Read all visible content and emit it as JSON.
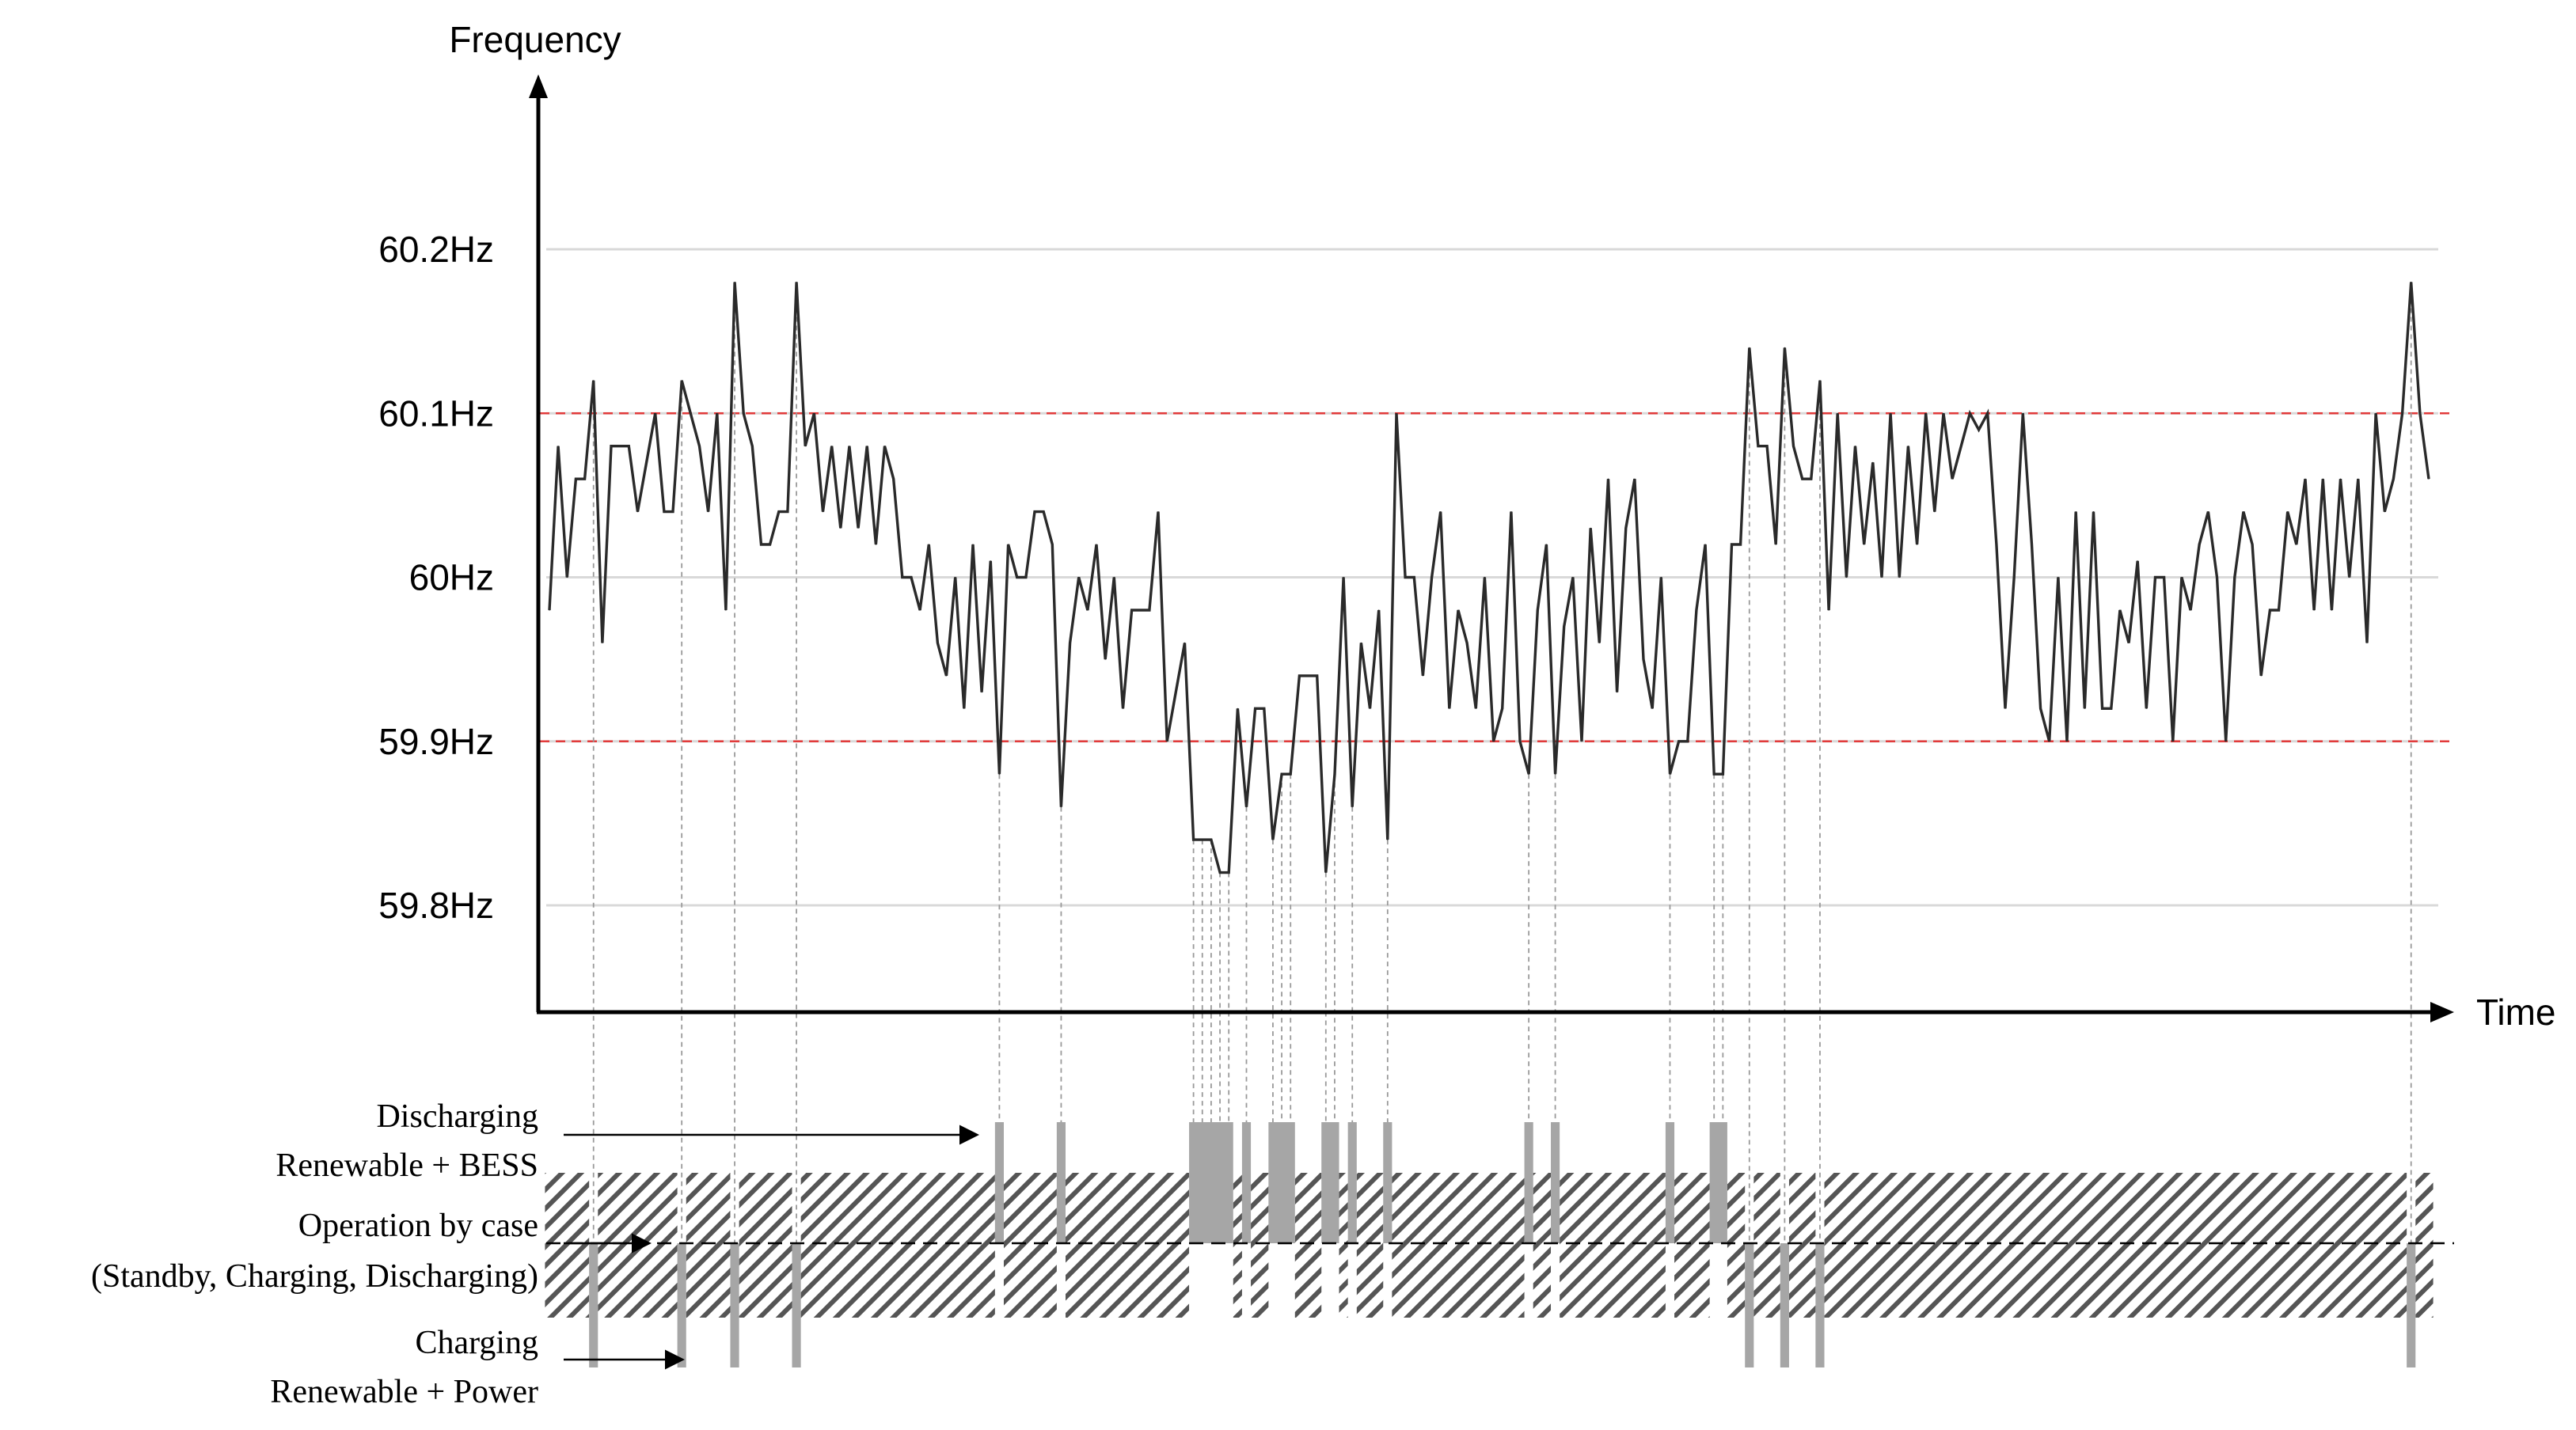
{
  "chart_data": {
    "type": "line",
    "ylabel": "Frequency",
    "xlabel": "Time",
    "y_ticks": [
      "60.2Hz",
      "60.1Hz",
      "60Hz",
      "59.9Hz",
      "59.8Hz"
    ],
    "y_tick_values": [
      60.2,
      60.1,
      60.0,
      59.9,
      59.8
    ],
    "ylim": [
      59.74,
      60.2
    ],
    "xlim": [
      0,
      231
    ],
    "thresholds": {
      "upper": 60.1,
      "lower": 59.9
    },
    "series": [
      {
        "values": [
          59.98,
          60.08,
          60.0,
          60.06,
          60.06,
          60.12,
          59.96,
          60.08,
          60.08,
          60.08,
          60.04,
          60.07,
          60.1,
          60.04,
          60.04,
          60.12,
          60.1,
          60.08,
          60.04,
          60.1,
          59.98,
          60.18,
          60.1,
          60.08,
          60.02,
          60.02,
          60.04,
          60.04,
          60.18,
          60.08,
          60.1,
          60.04,
          60.08,
          60.03,
          60.08,
          60.03,
          60.08,
          60.02,
          60.08,
          60.06,
          60.0,
          60.0,
          59.98,
          60.02,
          59.96,
          59.94,
          60.0,
          59.92,
          60.02,
          59.93,
          60.01,
          59.88,
          60.02,
          60.0,
          60.0,
          60.04,
          60.04,
          60.02,
          59.86,
          59.96,
          60.0,
          59.98,
          60.02,
          59.95,
          60.0,
          59.92,
          59.98,
          59.98,
          59.98,
          60.04,
          59.9,
          59.93,
          59.96,
          59.84,
          59.84,
          59.84,
          59.82,
          59.82,
          59.92,
          59.86,
          59.92,
          59.92,
          59.84,
          59.88,
          59.88,
          59.94,
          59.94,
          59.94,
          59.82,
          59.88,
          60.0,
          59.86,
          59.96,
          59.92,
          59.98,
          59.84,
          60.1,
          60.0,
          60.0,
          59.94,
          60.0,
          60.04,
          59.92,
          59.98,
          59.96,
          59.92,
          60.0,
          59.9,
          59.92,
          60.04,
          59.9,
          59.88,
          59.98,
          60.02,
          59.88,
          59.97,
          60.0,
          59.9,
          60.03,
          59.96,
          60.06,
          59.93,
          60.03,
          60.06,
          59.95,
          59.92,
          60.0,
          59.88,
          59.9,
          59.9,
          59.98,
          60.02,
          59.88,
          59.88,
          60.02,
          60.02,
          60.14,
          60.08,
          60.08,
          60.02,
          60.14,
          60.08,
          60.06,
          60.06,
          60.12,
          59.98,
          60.1,
          60.0,
          60.08,
          60.02,
          60.07,
          60.0,
          60.1,
          60.0,
          60.08,
          60.02,
          60.1,
          60.04,
          60.1,
          60.06,
          60.08,
          60.1,
          60.09,
          60.1,
          60.02,
          59.92,
          60.0,
          60.1,
          60.02,
          59.92,
          59.9,
          60.0,
          59.9,
          60.04,
          59.92,
          60.04,
          59.92,
          59.92,
          59.98,
          59.96,
          60.01,
          59.92,
          60.0,
          60.0,
          59.9,
          60.0,
          59.98,
          60.02,
          60.04,
          60.0,
          59.9,
          60.0,
          60.04,
          60.02,
          59.94,
          59.98,
          59.98,
          60.04,
          60.02,
          60.06,
          59.98,
          60.06,
          59.98,
          60.06,
          60.0,
          60.06,
          59.96,
          60.1,
          60.04,
          60.06,
          60.1,
          60.18,
          60.1,
          60.06
        ]
      }
    ],
    "operation_legend": {
      "discharging_title": "Discharging",
      "discharging_sub": "Renewable + BESS",
      "operation_title": "Operation by case",
      "operation_sub": "(Standby, Charging, Discharging)",
      "charging_title": "Charging",
      "charging_sub": "Renewable + Power"
    },
    "colors": {
      "line": "#2a2a2a",
      "threshold": "#e23b3b",
      "grid": "#d9d9d9",
      "bar": "#a6a6a6",
      "hatch": "#555555",
      "axis": "#000000"
    }
  }
}
